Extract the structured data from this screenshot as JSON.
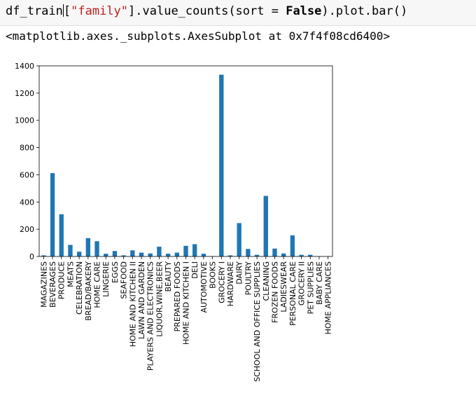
{
  "cell": {
    "code_var": "df_train",
    "code_bracket_open": "[",
    "code_string": "\"family\"",
    "code_after_string": "].value_counts(sort = ",
    "code_kw": "False",
    "code_end": ").plot.bar()"
  },
  "output": {
    "repr": "<matplotlib.axes._subplots.AxesSubplot at 0x7f4f08cd6400>"
  },
  "chart_data": {
    "type": "bar",
    "color": "#1f77b4",
    "ylim": [
      0,
      1400
    ],
    "yticks": [
      0,
      200,
      400,
      600,
      800,
      1000,
      1200,
      1400
    ],
    "grid": false,
    "categories": [
      "MAGAZINES",
      "BEVERAGES",
      "PRODUCE",
      "MEATS",
      "CELEBRATION",
      "BREAD/BAKERY",
      "HOME CARE",
      "LINGERIE",
      "EGGS",
      "SEAFOOD",
      "HOME AND KITCHEN II",
      "LAWN AND GARDEN",
      "PLAYERS AND ELECTRONICS",
      "LIQUOR,WINE,BEER",
      "BEAUTY",
      "PREPARED FOODS",
      "HOME AND KITCHEN I",
      "DELI",
      "AUTOMOTIVE",
      "BOOKS",
      "GROCERY I",
      "HARDWARE",
      "DAIRY",
      "POULTRY",
      "SCHOOL AND OFFICE SUPPLIES",
      "CLEANING",
      "FROZEN FOODS",
      "LADIESWEAR",
      "PERSONAL CARE",
      "GROCERY II",
      "PET SUPPLIES",
      "BABY CARE",
      "HOME APPLIANCES"
    ],
    "values": [
      8,
      612,
      310,
      85,
      35,
      135,
      112,
      20,
      40,
      8,
      45,
      28,
      22,
      72,
      20,
      28,
      78,
      90,
      20,
      2,
      1335,
      8,
      245,
      55,
      12,
      445,
      58,
      22,
      155,
      12,
      12,
      2,
      2
    ]
  }
}
